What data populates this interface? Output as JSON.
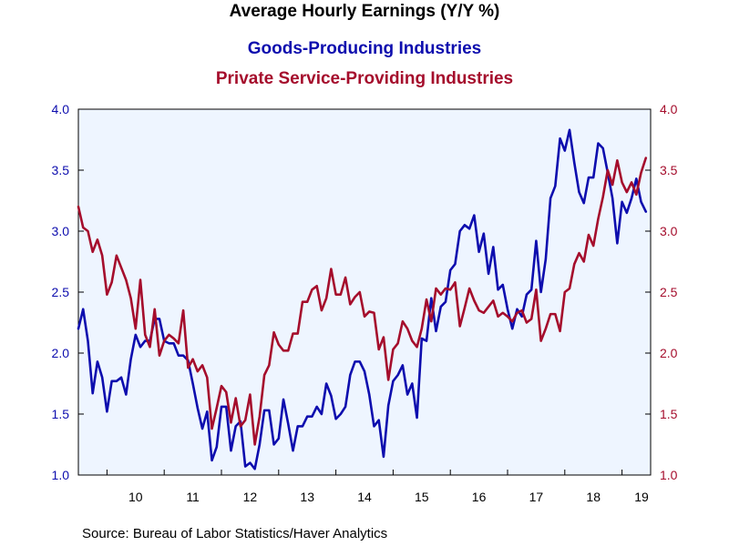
{
  "chart_data": {
    "type": "line",
    "title": "Average Hourly Earnings (Y/Y %)",
    "source": "Source:  Bureau of Labor Statistics/Haver Analytics",
    "x_tick_labels": [
      "10",
      "11",
      "12",
      "13",
      "14",
      "15",
      "16",
      "17",
      "18",
      "19"
    ],
    "y_left_ticks": [
      "1.0",
      "1.5",
      "2.0",
      "2.5",
      "3.0",
      "3.5",
      "4.0"
    ],
    "y_right_ticks": [
      "1.0",
      "1.5",
      "2.0",
      "2.5",
      "3.0",
      "3.5",
      "4.0"
    ],
    "ylim": [
      1.0,
      4.0
    ],
    "xlim": [
      2009.5,
      2019.5
    ],
    "grid": false,
    "background_color": "#eef5ff",
    "series": [
      {
        "name": "Goods-Producing Industries",
        "color": "#0d0dae",
        "axis": "left",
        "start": 2009.5,
        "step": 0.0833333,
        "values": [
          2.2,
          2.36,
          2.1,
          1.67,
          1.93,
          1.8,
          1.52,
          1.77,
          1.77,
          1.8,
          1.66,
          1.95,
          2.15,
          2.05,
          2.1,
          2.1,
          2.28,
          2.28,
          2.1,
          2.08,
          2.08,
          1.98,
          1.98,
          1.94,
          1.75,
          1.55,
          1.38,
          1.52,
          1.12,
          1.23,
          1.56,
          1.56,
          1.2,
          1.4,
          1.44,
          1.07,
          1.1,
          1.05,
          1.25,
          1.53,
          1.53,
          1.25,
          1.3,
          1.62,
          1.42,
          1.2,
          1.4,
          1.4,
          1.48,
          1.48,
          1.56,
          1.5,
          1.75,
          1.65,
          1.46,
          1.5,
          1.56,
          1.82,
          1.93,
          1.93,
          1.85,
          1.66,
          1.4,
          1.45,
          1.15,
          1.57,
          1.77,
          1.82,
          1.9,
          1.66,
          1.75,
          1.47,
          2.12,
          2.1,
          2.45,
          2.18,
          2.38,
          2.42,
          2.68,
          2.73,
          3.0,
          3.05,
          3.02,
          3.13,
          2.83,
          2.98,
          2.65,
          2.87,
          2.52,
          2.56,
          2.36,
          2.2,
          2.36,
          2.3,
          2.48,
          2.52,
          2.92,
          2.5,
          2.77,
          3.27,
          3.37,
          3.76,
          3.66,
          3.83,
          3.56,
          3.32,
          3.23,
          3.44,
          3.44,
          3.72,
          3.68,
          3.48,
          3.27,
          2.9,
          3.24,
          3.15,
          3.27,
          3.43,
          3.24,
          3.16
        ]
      },
      {
        "name": "Private Service-Providing Industries",
        "color": "#a50d2c",
        "axis": "right",
        "start": 2009.5,
        "step": 0.0833333,
        "values": [
          3.2,
          3.03,
          3.0,
          2.83,
          2.93,
          2.8,
          2.48,
          2.58,
          2.8,
          2.7,
          2.6,
          2.45,
          2.2,
          2.6,
          2.15,
          2.05,
          2.36,
          1.98,
          2.1,
          2.15,
          2.12,
          2.08,
          2.35,
          1.88,
          1.95,
          1.85,
          1.9,
          1.8,
          1.38,
          1.55,
          1.73,
          1.68,
          1.43,
          1.63,
          1.4,
          1.45,
          1.66,
          1.25,
          1.48,
          1.82,
          1.9,
          2.17,
          2.07,
          2.02,
          2.02,
          2.16,
          2.16,
          2.42,
          2.42,
          2.52,
          2.55,
          2.35,
          2.45,
          2.69,
          2.48,
          2.48,
          2.62,
          2.4,
          2.46,
          2.5,
          2.3,
          2.34,
          2.33,
          2.03,
          2.13,
          1.78,
          2.03,
          2.08,
          2.26,
          2.2,
          2.1,
          2.05,
          2.2,
          2.44,
          2.26,
          2.53,
          2.48,
          2.53,
          2.52,
          2.58,
          2.22,
          2.37,
          2.53,
          2.43,
          2.35,
          2.33,
          2.38,
          2.43,
          2.3,
          2.33,
          2.3,
          2.26,
          2.33,
          2.35,
          2.25,
          2.28,
          2.52,
          2.1,
          2.2,
          2.32,
          2.32,
          2.18,
          2.5,
          2.53,
          2.73,
          2.82,
          2.75,
          2.97,
          2.88,
          3.1,
          3.28,
          3.5,
          3.38,
          3.58,
          3.4,
          3.32,
          3.4,
          3.3,
          3.48,
          3.6
        ]
      }
    ]
  }
}
